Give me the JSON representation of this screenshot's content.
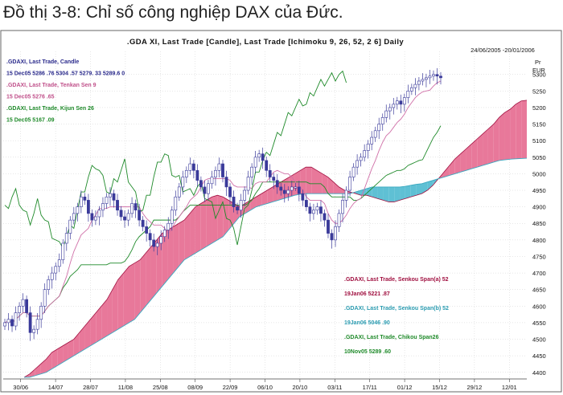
{
  "caption": "Đồ thị 3-8: Chỉ số công nghiệp DAX của Đức.",
  "chart_data": {
    "type": "candlestick-ichimoku",
    "title": ".GDA XI, Last Trade [Candle], Last Trade [Ichimoku 9, 26, 52, 2 6] Daily",
    "date_range": "24/06/2005 -20/01/2006",
    "y_unit_line1": "Pr",
    "y_unit_line2": "EUR",
    "ylim": [
      4380,
      5360
    ],
    "y_ticks": [
      4400,
      4450,
      4500,
      4550,
      4600,
      4650,
      4700,
      4750,
      4800,
      4850,
      4900,
      4950,
      5000,
      5050,
      5100,
      5150,
      5200,
      5250,
      5300
    ],
    "x_labels": [
      "30/06",
      "14/07",
      "28/07",
      "11/08",
      "25/08",
      "08/09",
      "22/09",
      "06/10",
      "20/10",
      "03/11",
      "17/11",
      "01/12",
      "15/12",
      "29/12",
      "12/01"
    ],
    "grid": true,
    "legend_top": [
      {
        "text": ".GDAXI, Last Trade, Candle",
        "color": "#2b2b8c"
      },
      {
        "text": "15 Dec05 5286  .76 5304  .57 5279. 33 5289.6 0",
        "color": "#2b2b8c"
      },
      {
        "text": ".GDAXI, Last Trade, Tenkan Sen 9",
        "color": "#c0508a"
      },
      {
        "text": "15 Dec05 5276  .65",
        "color": "#c0508a"
      },
      {
        "text": ".GDAXI, Last Trade, Kijun Sen 26",
        "color": "#1f8a2a"
      },
      {
        "text": "15 Dec05 5167  .09",
        "color": "#1f8a2a"
      }
    ],
    "legend_bottom": [
      {
        "text": ".GDAXI, Last Trade, Senkou Span(a) 52",
        "color": "#a01040"
      },
      {
        "text": "19Jan06 5221  .87",
        "color": "#a01040"
      },
      {
        "text": ".GDAXI, Last Trade, Senkou Span(b) 52",
        "color": "#2a9bb0"
      },
      {
        "text": "19Jan06 5046  .90",
        "color": "#2a9bb0"
      },
      {
        "text": ".GDAXI, Last Trade, Chikou Span26",
        "color": "#1f8a2a"
      },
      {
        "text": "10Nov05 5289  .60",
        "color": "#1f8a2a"
      }
    ],
    "colors": {
      "candle": "#3a3a9a",
      "tenkan": "#d070a8",
      "kijun": "#1f8a2a",
      "chikou": "#1f8a2a",
      "cloud_up": "#e8789a",
      "cloud_down": "#5fc0d4",
      "span_a": "#a01040",
      "span_b": "#3aa8c0"
    },
    "closes": [
      4550,
      4560,
      4540,
      4580,
      4600,
      4620,
      4580,
      4520,
      4530,
      4560,
      4600,
      4650,
      4680,
      4700,
      4720,
      4740,
      4790,
      4820,
      4860,
      4880,
      4900,
      4930,
      4920,
      4880,
      4860,
      4870,
      4890,
      4910,
      4930,
      4940,
      4920,
      4890,
      4870,
      4860,
      4880,
      4910,
      4890,
      4860,
      4840,
      4820,
      4800,
      4780,
      4790,
      4810,
      4830,
      4850,
      4890,
      4930,
      4960,
      4990,
      5010,
      5030,
      5010,
      4980,
      4960,
      4940,
      4970,
      4990,
      5010,
      5030,
      4990,
      4960,
      4930,
      4900,
      4890,
      4920,
      4950,
      4990,
      5020,
      5050,
      5060,
      5040,
      5010,
      4990,
      4980,
      4960,
      4950,
      4940,
      4950,
      4960,
      4960,
      4940,
      4920,
      4900,
      4880,
      4890,
      4900,
      4880,
      4860,
      4820,
      4800,
      4840,
      4880,
      4920,
      4950,
      4990,
      5020,
      5040,
      5050,
      5070,
      5090,
      5110,
      5130,
      5150,
      5170,
      5190,
      5200,
      5210,
      5220,
      5210,
      5230,
      5250,
      5260,
      5270,
      5280,
      5285,
      5290,
      5295,
      5300,
      5295,
      5290
    ],
    "senkou_a": [
      4385,
      4395,
      4410,
      4425,
      4440,
      4460,
      4470,
      4480,
      4490,
      4500,
      4520,
      4540,
      4560,
      4580,
      4600,
      4620,
      4650,
      4680,
      4700,
      4720,
      4730,
      4740,
      4760,
      4780,
      4800,
      4820,
      4830,
      4840,
      4850,
      4860,
      4880,
      4900,
      4910,
      4920,
      4930,
      4935,
      4930,
      4920,
      4910,
      4900,
      4910,
      4920,
      4930,
      4940,
      4950,
      4960,
      4970,
      4980,
      4990,
      5000,
      5010,
      5020,
      5020,
      5010,
      5000,
      4990,
      4975,
      4960,
      4950,
      4945,
      4940,
      4935,
      4935,
      4930,
      4925,
      4920,
      4915,
      4915,
      4920,
      4925,
      4930,
      4935,
      4940,
      4950,
      4965,
      4985,
      5005,
      5025,
      5045,
      5060,
      5075,
      5090,
      5105,
      5120,
      5135,
      5150,
      5170,
      5185,
      5195,
      5210,
      5220,
      5222
    ],
    "senkou_b": [
      4385,
      4385,
      4390,
      4395,
      4400,
      4410,
      4420,
      4430,
      4440,
      4450,
      4460,
      4470,
      4480,
      4490,
      4500,
      4510,
      4520,
      4530,
      4540,
      4550,
      4560,
      4580,
      4600,
      4620,
      4640,
      4660,
      4680,
      4700,
      4720,
      4740,
      4750,
      4760,
      4770,
      4780,
      4790,
      4800,
      4810,
      4830,
      4850,
      4870,
      4880,
      4890,
      4900,
      4905,
      4910,
      4915,
      4920,
      4925,
      4930,
      4935,
      4938,
      4940,
      4940,
      4940,
      4940,
      4940,
      4940,
      4940,
      4940,
      4940,
      4945,
      4950,
      4955,
      4960,
      4960,
      4960,
      4960,
      4960,
      4960,
      4962,
      4965,
      4968,
      4970,
      4975,
      4980,
      4985,
      4990,
      4995,
      5000,
      5005,
      5010,
      5015,
      5020,
      5025,
      5030,
      5035,
      5040,
      5042,
      5044,
      5045,
      5046,
      5047
    ]
  }
}
